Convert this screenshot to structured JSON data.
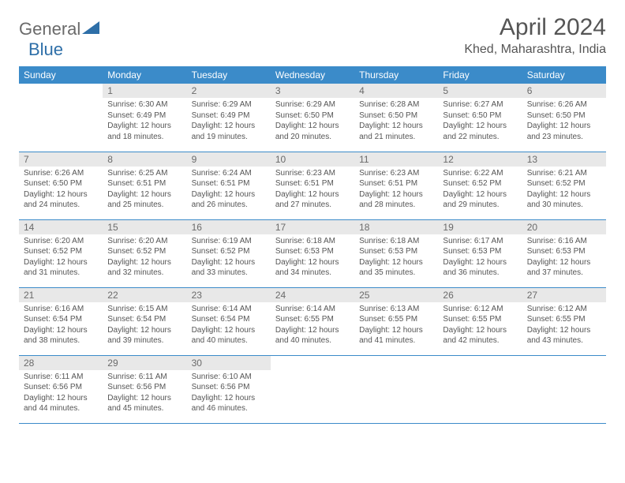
{
  "logo": {
    "text1": "General",
    "text2": "Blue",
    "icon_color": "#2e6fa8"
  },
  "title": "April 2024",
  "location": "Khed, Maharashtra, India",
  "colors": {
    "header_bg": "#3b8bc9",
    "header_fg": "#ffffff",
    "daynum_bg": "#e8e8e8",
    "text": "#555555",
    "border": "#3b8bc9",
    "page_bg": "#ffffff"
  },
  "weekdays": [
    "Sunday",
    "Monday",
    "Tuesday",
    "Wednesday",
    "Thursday",
    "Friday",
    "Saturday"
  ],
  "weeks": [
    [
      null,
      {
        "n": "1",
        "sr": "6:30 AM",
        "ss": "6:49 PM",
        "dl": "12 hours and 18 minutes."
      },
      {
        "n": "2",
        "sr": "6:29 AM",
        "ss": "6:49 PM",
        "dl": "12 hours and 19 minutes."
      },
      {
        "n": "3",
        "sr": "6:29 AM",
        "ss": "6:50 PM",
        "dl": "12 hours and 20 minutes."
      },
      {
        "n": "4",
        "sr": "6:28 AM",
        "ss": "6:50 PM",
        "dl": "12 hours and 21 minutes."
      },
      {
        "n": "5",
        "sr": "6:27 AM",
        "ss": "6:50 PM",
        "dl": "12 hours and 22 minutes."
      },
      {
        "n": "6",
        "sr": "6:26 AM",
        "ss": "6:50 PM",
        "dl": "12 hours and 23 minutes."
      }
    ],
    [
      {
        "n": "7",
        "sr": "6:26 AM",
        "ss": "6:50 PM",
        "dl": "12 hours and 24 minutes."
      },
      {
        "n": "8",
        "sr": "6:25 AM",
        "ss": "6:51 PM",
        "dl": "12 hours and 25 minutes."
      },
      {
        "n": "9",
        "sr": "6:24 AM",
        "ss": "6:51 PM",
        "dl": "12 hours and 26 minutes."
      },
      {
        "n": "10",
        "sr": "6:23 AM",
        "ss": "6:51 PM",
        "dl": "12 hours and 27 minutes."
      },
      {
        "n": "11",
        "sr": "6:23 AM",
        "ss": "6:51 PM",
        "dl": "12 hours and 28 minutes."
      },
      {
        "n": "12",
        "sr": "6:22 AM",
        "ss": "6:52 PM",
        "dl": "12 hours and 29 minutes."
      },
      {
        "n": "13",
        "sr": "6:21 AM",
        "ss": "6:52 PM",
        "dl": "12 hours and 30 minutes."
      }
    ],
    [
      {
        "n": "14",
        "sr": "6:20 AM",
        "ss": "6:52 PM",
        "dl": "12 hours and 31 minutes."
      },
      {
        "n": "15",
        "sr": "6:20 AM",
        "ss": "6:52 PM",
        "dl": "12 hours and 32 minutes."
      },
      {
        "n": "16",
        "sr": "6:19 AM",
        "ss": "6:52 PM",
        "dl": "12 hours and 33 minutes."
      },
      {
        "n": "17",
        "sr": "6:18 AM",
        "ss": "6:53 PM",
        "dl": "12 hours and 34 minutes."
      },
      {
        "n": "18",
        "sr": "6:18 AM",
        "ss": "6:53 PM",
        "dl": "12 hours and 35 minutes."
      },
      {
        "n": "19",
        "sr": "6:17 AM",
        "ss": "6:53 PM",
        "dl": "12 hours and 36 minutes."
      },
      {
        "n": "20",
        "sr": "6:16 AM",
        "ss": "6:53 PM",
        "dl": "12 hours and 37 minutes."
      }
    ],
    [
      {
        "n": "21",
        "sr": "6:16 AM",
        "ss": "6:54 PM",
        "dl": "12 hours and 38 minutes."
      },
      {
        "n": "22",
        "sr": "6:15 AM",
        "ss": "6:54 PM",
        "dl": "12 hours and 39 minutes."
      },
      {
        "n": "23",
        "sr": "6:14 AM",
        "ss": "6:54 PM",
        "dl": "12 hours and 40 minutes."
      },
      {
        "n": "24",
        "sr": "6:14 AM",
        "ss": "6:55 PM",
        "dl": "12 hours and 40 minutes."
      },
      {
        "n": "25",
        "sr": "6:13 AM",
        "ss": "6:55 PM",
        "dl": "12 hours and 41 minutes."
      },
      {
        "n": "26",
        "sr": "6:12 AM",
        "ss": "6:55 PM",
        "dl": "12 hours and 42 minutes."
      },
      {
        "n": "27",
        "sr": "6:12 AM",
        "ss": "6:55 PM",
        "dl": "12 hours and 43 minutes."
      }
    ],
    [
      {
        "n": "28",
        "sr": "6:11 AM",
        "ss": "6:56 PM",
        "dl": "12 hours and 44 minutes."
      },
      {
        "n": "29",
        "sr": "6:11 AM",
        "ss": "6:56 PM",
        "dl": "12 hours and 45 minutes."
      },
      {
        "n": "30",
        "sr": "6:10 AM",
        "ss": "6:56 PM",
        "dl": "12 hours and 46 minutes."
      },
      null,
      null,
      null,
      null
    ]
  ],
  "labels": {
    "sunrise": "Sunrise:",
    "sunset": "Sunset:",
    "daylight": "Daylight:"
  }
}
